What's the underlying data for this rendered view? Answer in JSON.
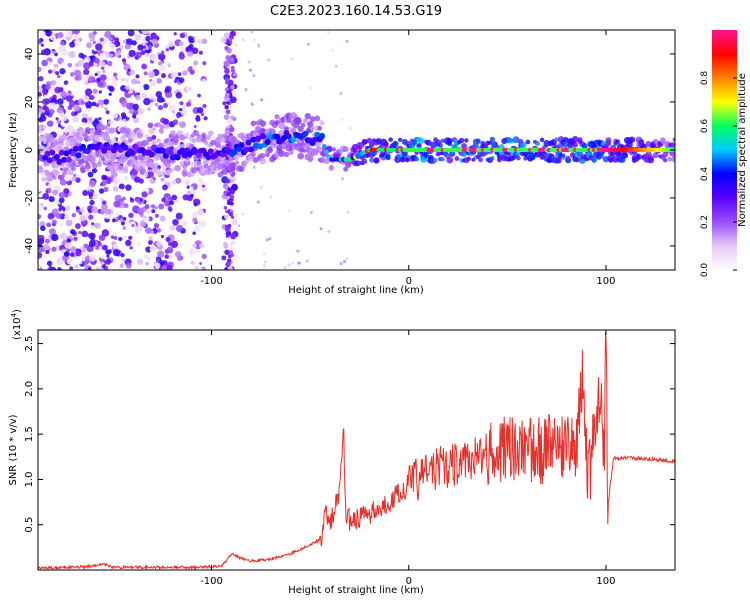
{
  "figure_title": "C2E3.2023.160.14.53.G19",
  "chart_data": [
    {
      "type": "heatmap",
      "title": "C2E3.2023.160.14.53.G19",
      "xlabel": "Height of straight line (km)",
      "ylabel": "Frequency (Hz)",
      "xlim": [
        -188,
        135
      ],
      "ylim": [
        -50,
        50
      ],
      "x_ticks": [
        -100,
        0,
        100
      ],
      "x_tick_labels": [
        "-100",
        "0",
        "100"
      ],
      "y_ticks": [
        -40,
        -20,
        0,
        20,
        40
      ],
      "y_tick_labels": [
        "-40",
        "-20",
        "0",
        "20",
        "40"
      ],
      "colorbar": {
        "label": "Normalized spectral amplitude",
        "range": [
          0,
          1
        ],
        "ticks": [
          0,
          0.2,
          0.4,
          0.6,
          0.8
        ],
        "tick_labels": [
          "0.0",
          "0.2",
          "0.4",
          "0.6",
          "0.8"
        ],
        "colors": [
          "#ffffff",
          "#e8c8f8",
          "#9b4dff",
          "#5a00ff",
          "#0000ff",
          "#00c8ff",
          "#00ff60",
          "#ffff00",
          "#ff8000",
          "#ff0000",
          "#ff1493"
        ]
      },
      "ridge": {
        "x": [
          -175,
          -165,
          -160,
          -105,
          -90,
          -80,
          -70,
          -60,
          -50,
          -44,
          -40,
          -30,
          -20,
          -10,
          0,
          10,
          20,
          40,
          60,
          80,
          100,
          135
        ],
        "freq_hz": [
          -3,
          0,
          1,
          -2,
          -1,
          2,
          5,
          6,
          5,
          4,
          -4,
          -4,
          0,
          0,
          0,
          0,
          0,
          0,
          0,
          0,
          0,
          0
        ],
        "amplitude": [
          0.35,
          0.45,
          0.4,
          0.4,
          0.45,
          0.45,
          0.5,
          0.5,
          0.5,
          0.45,
          0.55,
          0.6,
          0.9,
          0.95,
          1.0,
          1.0,
          1.0,
          1.0,
          1.0,
          1.0,
          1.0,
          0.6
        ]
      },
      "grid": false
    },
    {
      "type": "line",
      "xlabel": "Height of straight line (km)",
      "ylabel": "SNR (10 * v/v)",
      "y_multiplier_label": "(x10",
      "y_multiplier_exp": "4",
      "xlim": [
        -188,
        135
      ],
      "ylim": [
        0,
        2.65
      ],
      "x_ticks": [
        -100,
        0,
        100
      ],
      "x_tick_labels": [
        "-100",
        "0",
        "100"
      ],
      "y_ticks": [
        0.5,
        1.0,
        1.5,
        2.0,
        2.5
      ],
      "y_tick_labels": [
        "0.5",
        "1.0",
        "1.5",
        "2.0",
        "2.5"
      ],
      "line_color": "#e8302a",
      "series": [
        {
          "x": [
            -188,
            -170,
            -160,
            -155,
            -150,
            -130,
            -110,
            -95,
            -92,
            -90,
            -85,
            -80,
            -70,
            -60,
            -50,
            -44,
            -42,
            -40,
            -35,
            -33,
            -32,
            -30,
            -25,
            -20,
            -15,
            -10,
            -5,
            -2,
            0,
            5,
            10,
            20,
            30,
            35,
            40,
            45,
            50,
            55,
            60,
            65,
            70,
            75,
            80,
            85,
            88,
            90,
            92,
            95,
            97,
            98,
            99,
            100,
            101,
            102,
            104,
            106,
            110,
            120,
            130,
            135
          ],
          "values": [
            0.02,
            0.03,
            0.04,
            0.07,
            0.03,
            0.03,
            0.03,
            0.04,
            0.12,
            0.18,
            0.13,
            0.1,
            0.12,
            0.18,
            0.28,
            0.35,
            0.7,
            0.5,
            0.85,
            1.6,
            0.6,
            0.55,
            0.58,
            0.62,
            0.68,
            0.75,
            0.85,
            0.9,
            0.95,
            1.0,
            1.1,
            1.15,
            1.2,
            1.25,
            1.3,
            1.35,
            1.3,
            1.4,
            1.35,
            1.3,
            1.35,
            1.3,
            1.35,
            1.3,
            2.1,
            1.2,
            1.1,
            1.7,
            1.95,
            1.8,
            1.2,
            2.7,
            0.7,
            0.9,
            1.25,
            1.22,
            1.24,
            1.23,
            1.21,
            1.2
          ]
        }
      ],
      "grid": false
    }
  ]
}
